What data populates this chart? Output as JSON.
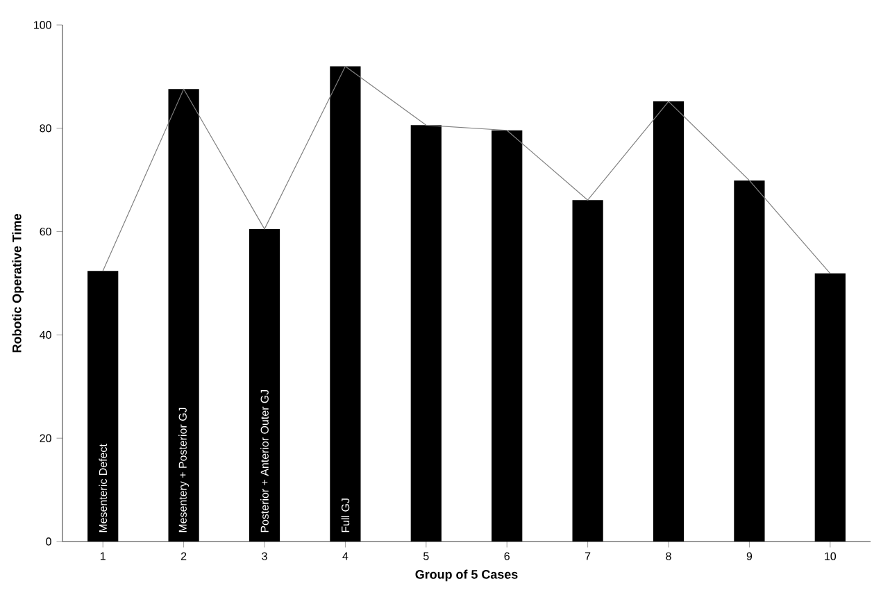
{
  "chart_data": {
    "type": "bar",
    "xlabel": "Group of 5 Cases",
    "ylabel": "Robotic Operative Time",
    "categories": [
      "1",
      "2",
      "3",
      "4",
      "5",
      "6",
      "7",
      "8",
      "9",
      "10"
    ],
    "series": [
      {
        "color": "#000000",
        "values": [
          52.4,
          87.6,
          60.5,
          92,
          80.6,
          79.6,
          66.1,
          85.2,
          69.9,
          51.9
        ]
      },
      {
        "type": "line",
        "color": "#808080",
        "values": [
          52.4,
          87.6,
          60.5,
          92,
          80.6,
          79.6,
          66.1,
          85.2,
          69.9,
          51.9
        ]
      }
    ],
    "ylim": [
      0,
      100
    ],
    "yticks": [
      0,
      20,
      40,
      60,
      80,
      100
    ],
    "annotations": [
      "Mesenteric Defect",
      "Mesentery + Posterior GJ",
      "Posterior + Anterior Outer GJ",
      "Full GJ"
    ],
    "grid": false
  }
}
